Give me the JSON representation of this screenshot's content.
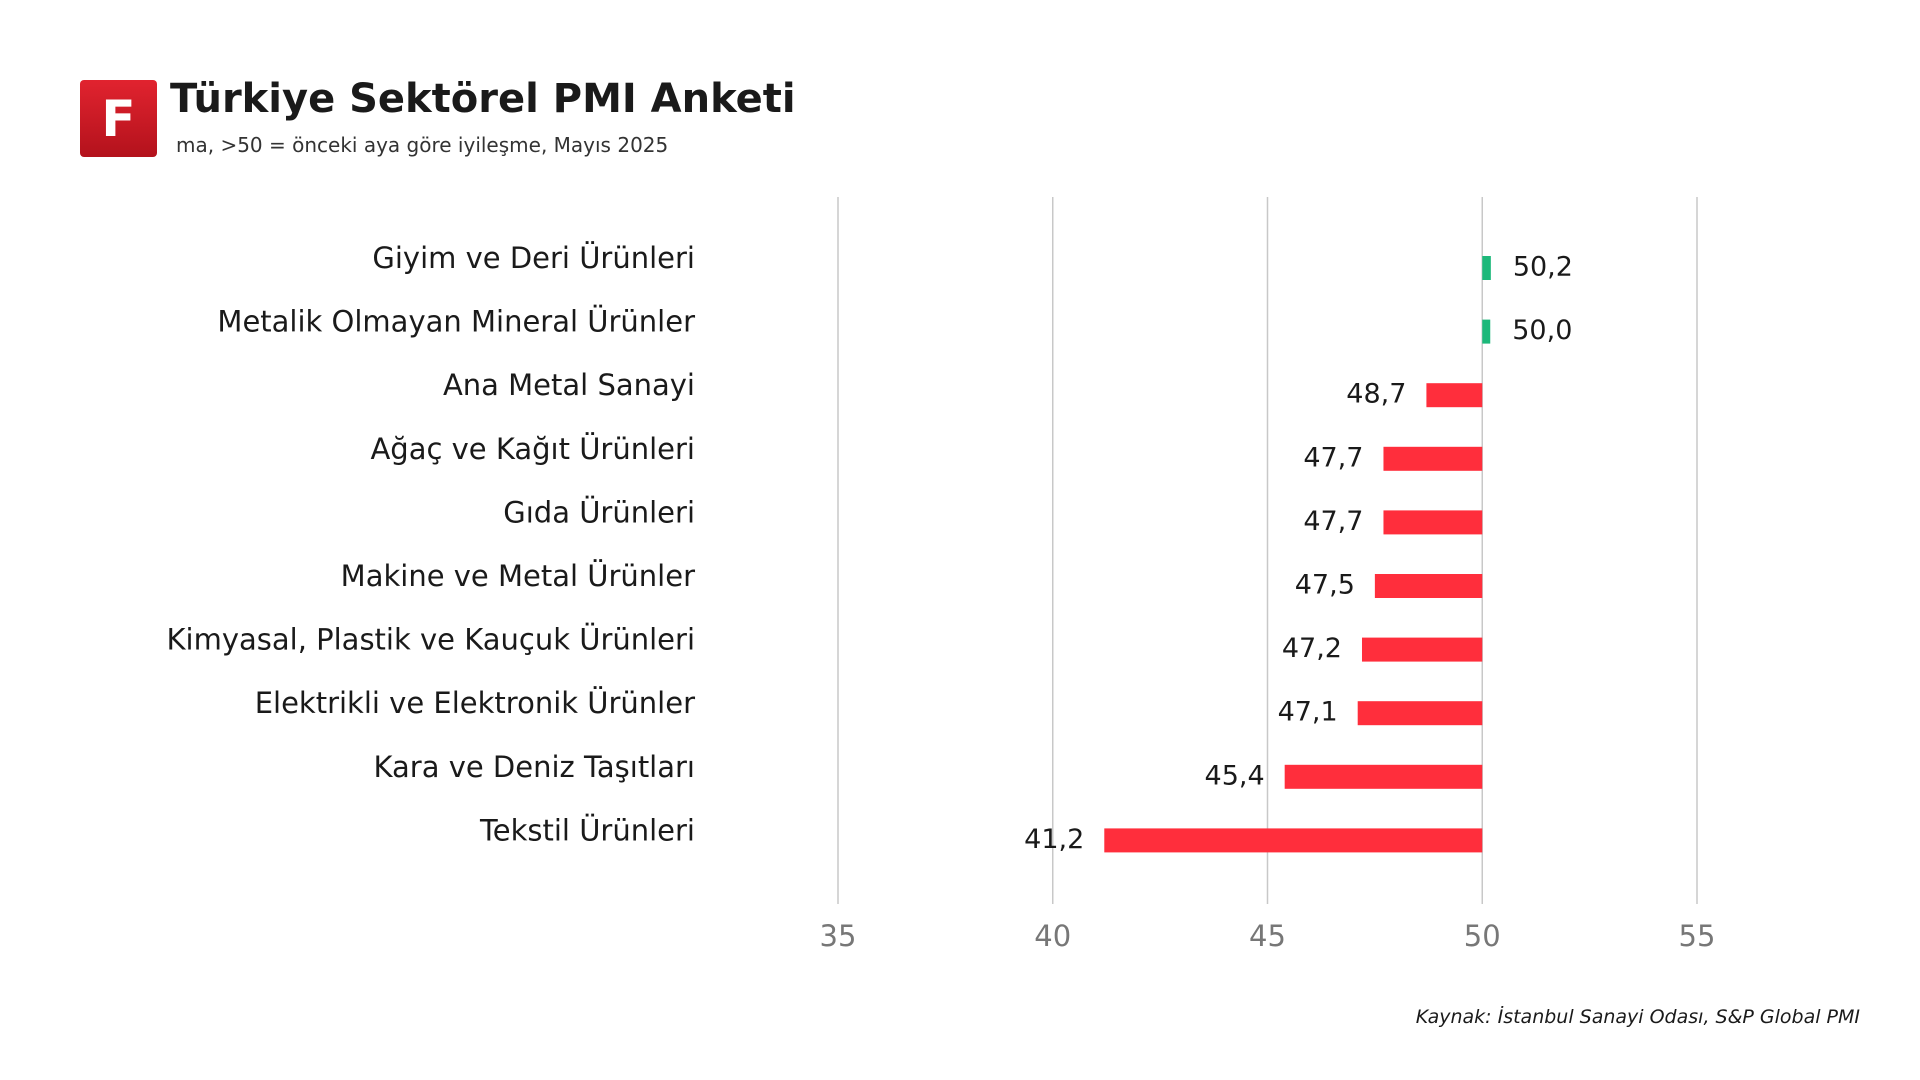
{
  "header": {
    "logo_letter": "F",
    "title": "Türkiye Sektörel PMI Anketi",
    "subtitle": "ma, >50 = önceki aya göre iyileşme, Mayıs 2025"
  },
  "footer": {
    "source": "Kaynak: İstanbul Sanayi Odası, S&P Global PMI"
  },
  "colors": {
    "positive": "#1db87a",
    "negative": "#ff2e3c",
    "logo": "#d01c27"
  },
  "chart_data": {
    "type": "bar",
    "orientation": "horizontal",
    "baseline": 50,
    "categories": [
      "Giyim ve Deri Ürünleri",
      "Metalik Olmayan Mineral Ürünler",
      "Ana Metal Sanayi",
      "Ağaç ve Kağıt Ürünleri",
      "Gıda Ürünleri",
      "Makine ve Metal Ürünler",
      "Kimyasal, Plastik ve Kauçuk Ürünleri",
      "Elektrikli ve Elektronik Ürünler",
      "Kara ve Deniz Taşıtları",
      "Tekstil Ürünleri"
    ],
    "values": [
      50.2,
      50.0,
      48.7,
      47.7,
      47.7,
      47.5,
      47.2,
      47.1,
      45.4,
      41.2
    ],
    "value_labels": [
      "50,2",
      "50,0",
      "48,7",
      "47,7",
      "47,7",
      "47,5",
      "47,2",
      "47,1",
      "45,4",
      "41,2"
    ],
    "xlim": [
      35,
      55
    ],
    "xticks": [
      35,
      40,
      45,
      50,
      55
    ],
    "xtick_labels": [
      "35",
      "40",
      "45",
      "50",
      "55"
    ],
    "grid": true,
    "legend": "none"
  }
}
